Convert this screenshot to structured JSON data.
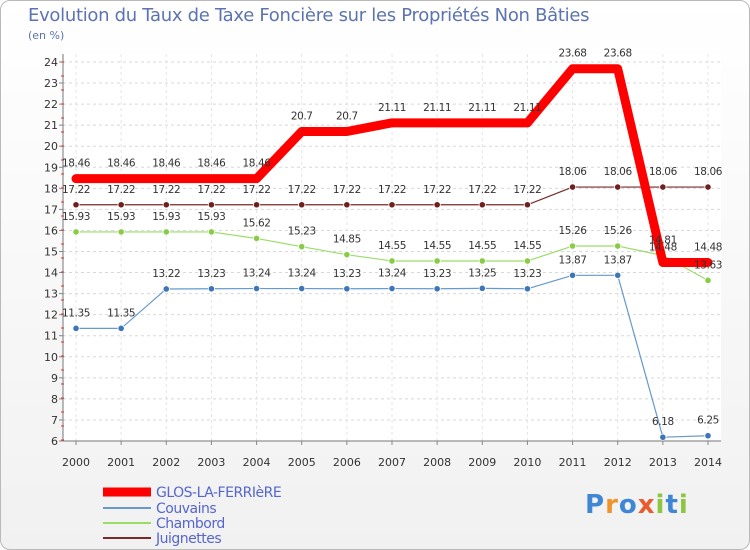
{
  "chart_data": {
    "type": "line",
    "title": "Evolution du Taux de Taxe Foncière sur les Propriétés Non Bâties",
    "ylabel": "(en %)",
    "xlabel": "",
    "x": [
      "2000",
      "2001",
      "2002",
      "2003",
      "2004",
      "2005",
      "2006",
      "2007",
      "2008",
      "2009",
      "2010",
      "2011",
      "2012",
      "2013",
      "2014"
    ],
    "ylim": [
      6,
      24
    ],
    "yticks": [
      6,
      7,
      8,
      9,
      10,
      11,
      12,
      13,
      14,
      15,
      16,
      17,
      18,
      19,
      20,
      21,
      22,
      23,
      24
    ],
    "legend_position": "bottom-left",
    "series": [
      {
        "name": "GLOS-LA-FERRIèRE",
        "color": "#ff0000",
        "width": 9,
        "markers": false,
        "values": [
          18.46,
          18.46,
          18.46,
          18.46,
          18.46,
          20.7,
          20.7,
          21.11,
          21.11,
          21.11,
          21.11,
          23.68,
          23.68,
          14.48,
          14.48
        ],
        "labels": [
          "18.46",
          "18.46",
          "18.46",
          "18.46",
          "18.46",
          "20.7",
          "20.7",
          "21.11",
          "21.11",
          "21.11",
          "21.11",
          "23.68",
          "23.68",
          "14.48",
          "14.48"
        ]
      },
      {
        "name": "Couvains",
        "color": "#6699cc",
        "marker": "#3d76b8",
        "width": 1.2,
        "markers": true,
        "values": [
          11.35,
          11.35,
          13.22,
          13.23,
          13.24,
          13.24,
          13.23,
          13.24,
          13.23,
          13.25,
          13.23,
          13.87,
          13.87,
          6.18,
          6.25
        ],
        "labels": [
          "11.35",
          "11.35",
          "13.22",
          "13.23",
          "13.24",
          "13.24",
          "13.23",
          "13.24",
          "13.23",
          "13.25",
          "13.23",
          "13.87",
          "13.87",
          "6.18",
          "6.25"
        ]
      },
      {
        "name": "Chambord",
        "color": "#99dd66",
        "marker": "#88cc44",
        "width": 1.2,
        "markers": true,
        "values": [
          15.93,
          15.93,
          15.93,
          15.93,
          15.62,
          15.23,
          14.85,
          14.55,
          14.55,
          14.55,
          14.55,
          15.26,
          15.26,
          14.81,
          13.63
        ],
        "labels": [
          "15.93",
          "15.93",
          "15.93",
          "15.93",
          "15.62",
          "15.23",
          "14.85",
          "14.55",
          "14.55",
          "14.55",
          "14.55",
          "15.26",
          "15.26",
          "14.81",
          "13.63"
        ]
      },
      {
        "name": "Juignettes",
        "color": "#7a2a2a",
        "marker": "#6e1f1f",
        "width": 1.2,
        "markers": true,
        "values": [
          17.22,
          17.22,
          17.22,
          17.22,
          17.22,
          17.22,
          17.22,
          17.22,
          17.22,
          17.22,
          17.22,
          18.06,
          18.06,
          18.06,
          18.06
        ],
        "labels": [
          "17.22",
          "17.22",
          "17.22",
          "17.22",
          "17.22",
          "17.22",
          "17.22",
          "17.22",
          "17.22",
          "17.22",
          "17.22",
          "18.06",
          "18.06",
          "18.06",
          "18.06"
        ]
      }
    ]
  },
  "logo": {
    "text": "Proxiti"
  }
}
